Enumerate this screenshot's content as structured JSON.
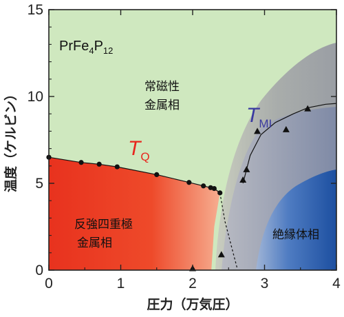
{
  "chart_data": {
    "type": "phase-diagram",
    "title": "PrFe4P12",
    "compound": {
      "base": "PrFe",
      "sub1": "4",
      "mid": "P",
      "sub2": "12"
    },
    "xlabel": "圧力（万気圧）",
    "ylabel": "温度（ケルビン）",
    "xlim": [
      0,
      4
    ],
    "ylim": [
      0,
      15
    ],
    "xticks": [
      "0",
      "1",
      "2",
      "3",
      "4"
    ],
    "yticks": [
      "0",
      "5",
      "10",
      "15"
    ],
    "regions": [
      {
        "name": "metal",
        "label_lines": [
          "常磁性",
          "金属相"
        ],
        "color": "#cfe8bf"
      },
      {
        "name": "antiquadrupole",
        "label_lines": [
          "反強四重極",
          "金属相"
        ],
        "color": "#e8321e"
      },
      {
        "name": "insulator",
        "label_lines": [
          "絶縁体相"
        ],
        "color": "#2a5aa8"
      }
    ],
    "series": [
      {
        "name": "TQ",
        "label": {
          "main": "T",
          "sub": "Q"
        },
        "color": "#e8261e",
        "marker": "circle",
        "points": [
          [
            0,
            6.5
          ],
          [
            0.45,
            6.2
          ],
          [
            0.7,
            6.1
          ],
          [
            0.95,
            5.95
          ],
          [
            1.5,
            5.5
          ],
          [
            1.95,
            5.05
          ],
          [
            2.15,
            4.85
          ],
          [
            2.25,
            4.75
          ],
          [
            2.3,
            4.7
          ],
          [
            2.38,
            4.45
          ]
        ]
      },
      {
        "name": "TMI",
        "label": {
          "main": "T",
          "sub": "MI"
        },
        "color": "#3a3aa0",
        "marker": "triangle",
        "points": [
          [
            2.4,
            0.9
          ],
          [
            2.7,
            5.2
          ],
          [
            2.75,
            5.8
          ],
          [
            2.9,
            8.0
          ],
          [
            3.3,
            8.1
          ],
          [
            3.6,
            9.3
          ],
          [
            2.0,
            0.1
          ]
        ]
      }
    ]
  }
}
